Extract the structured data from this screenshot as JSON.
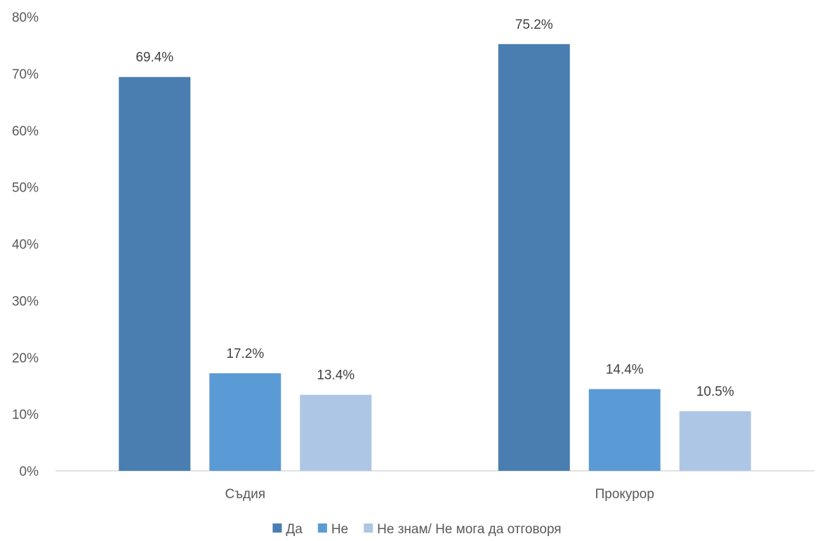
{
  "chart_data": {
    "type": "bar",
    "categories": [
      "Съдия",
      "Прокурор"
    ],
    "series": [
      {
        "name": "Да",
        "values": [
          69.4,
          75.2
        ],
        "color": "#4A7EB0"
      },
      {
        "name": "Не",
        "values": [
          17.2,
          14.4
        ],
        "color": "#5B9BD5"
      },
      {
        "name": "Не знам/ Не мога да отговоря",
        "values": [
          13.4,
          10.5
        ],
        "color": "#AEC6E6"
      }
    ],
    "data_labels": [
      [
        "69.4%",
        "75.2%"
      ],
      [
        "17.2%",
        "14.4%"
      ],
      [
        "13.4%",
        "10.5%"
      ]
    ],
    "y_ticks": [
      "0%",
      "10%",
      "20%",
      "30%",
      "40%",
      "50%",
      "60%",
      "70%",
      "80%"
    ],
    "ylim": [
      0,
      80
    ],
    "grid": false,
    "legend_position": "bottom",
    "title": "",
    "xlabel": "",
    "ylabel": ""
  }
}
